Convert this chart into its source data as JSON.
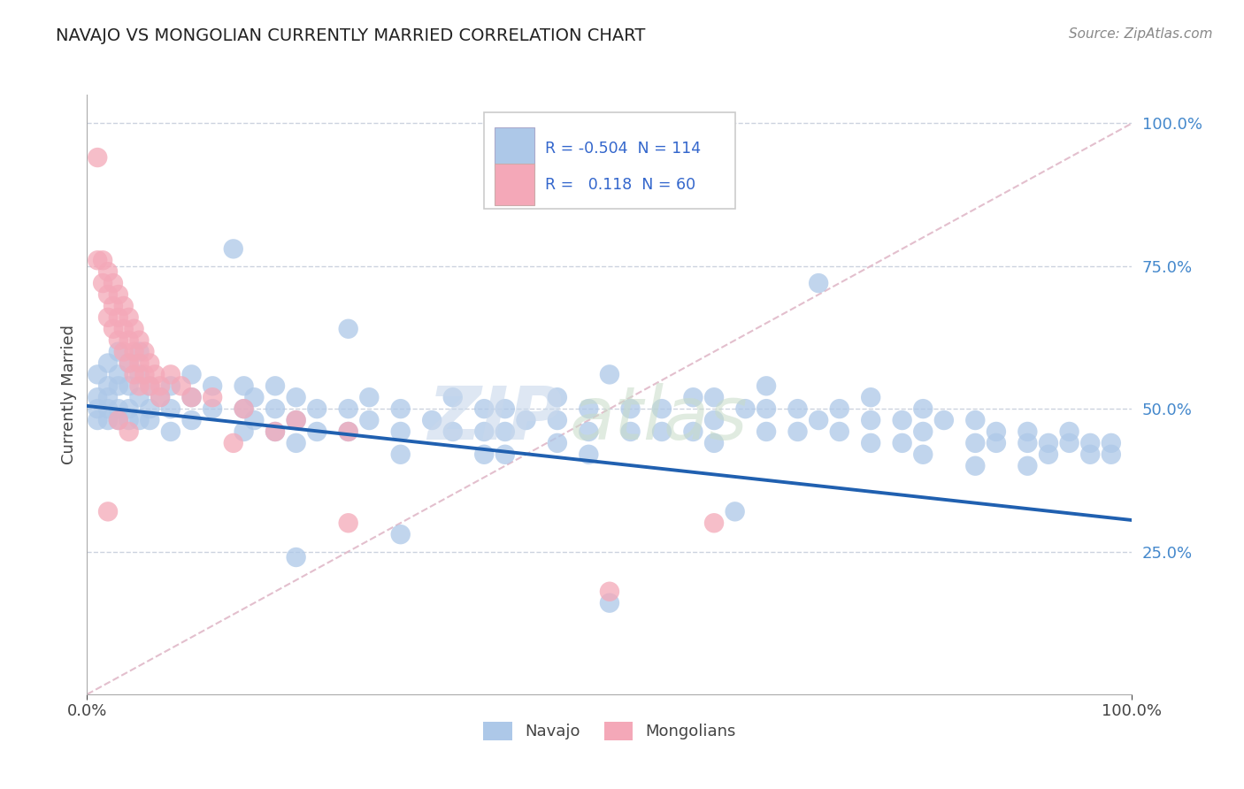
{
  "title": "NAVAJO VS MONGOLIAN CURRENTLY MARRIED CORRELATION CHART",
  "source": "Source: ZipAtlas.com",
  "ylabel": "Currently Married",
  "xlim": [
    0.0,
    1.0
  ],
  "ylim": [
    0.0,
    1.05
  ],
  "xtick_positions": [
    0.0,
    1.0
  ],
  "xtick_labels": [
    "0.0%",
    "100.0%"
  ],
  "ytick_positions": [
    0.25,
    0.5,
    0.75,
    1.0
  ],
  "ytick_labels_right": [
    "25.0%",
    "50.0%",
    "75.0%",
    "100.0%"
  ],
  "legend_labels": [
    "Navajo",
    "Mongolians"
  ],
  "navajo_R": "-0.504",
  "navajo_N": "114",
  "mongolian_R": "0.118",
  "mongolian_N": "60",
  "navajo_color": "#adc8e8",
  "mongolian_color": "#f4a8b8",
  "navajo_line_color": "#2060b0",
  "diagonal_color": "#e0b8c8",
  "watermark_zip_color": "#c8d8ec",
  "watermark_atlas_color": "#c8dcc8",
  "navajo_line_start_y": 0.505,
  "navajo_line_end_y": 0.305,
  "navajo_points": [
    [
      0.01,
      0.56
    ],
    [
      0.01,
      0.52
    ],
    [
      0.01,
      0.5
    ],
    [
      0.01,
      0.48
    ],
    [
      0.02,
      0.58
    ],
    [
      0.02,
      0.54
    ],
    [
      0.02,
      0.52
    ],
    [
      0.02,
      0.5
    ],
    [
      0.02,
      0.48
    ],
    [
      0.03,
      0.6
    ],
    [
      0.03,
      0.56
    ],
    [
      0.03,
      0.54
    ],
    [
      0.03,
      0.5
    ],
    [
      0.03,
      0.48
    ],
    [
      0.04,
      0.58
    ],
    [
      0.04,
      0.54
    ],
    [
      0.04,
      0.5
    ],
    [
      0.04,
      0.48
    ],
    [
      0.05,
      0.6
    ],
    [
      0.05,
      0.56
    ],
    [
      0.05,
      0.52
    ],
    [
      0.05,
      0.48
    ],
    [
      0.06,
      0.54
    ],
    [
      0.06,
      0.5
    ],
    [
      0.06,
      0.48
    ],
    [
      0.07,
      0.52
    ],
    [
      0.08,
      0.54
    ],
    [
      0.08,
      0.5
    ],
    [
      0.08,
      0.46
    ],
    [
      0.1,
      0.56
    ],
    [
      0.1,
      0.52
    ],
    [
      0.1,
      0.48
    ],
    [
      0.12,
      0.54
    ],
    [
      0.12,
      0.5
    ],
    [
      0.14,
      0.78
    ],
    [
      0.15,
      0.54
    ],
    [
      0.15,
      0.5
    ],
    [
      0.15,
      0.46
    ],
    [
      0.16,
      0.52
    ],
    [
      0.16,
      0.48
    ],
    [
      0.18,
      0.54
    ],
    [
      0.18,
      0.5
    ],
    [
      0.18,
      0.46
    ],
    [
      0.2,
      0.52
    ],
    [
      0.2,
      0.48
    ],
    [
      0.2,
      0.44
    ],
    [
      0.22,
      0.5
    ],
    [
      0.22,
      0.46
    ],
    [
      0.25,
      0.64
    ],
    [
      0.25,
      0.5
    ],
    [
      0.25,
      0.46
    ],
    [
      0.27,
      0.52
    ],
    [
      0.27,
      0.48
    ],
    [
      0.3,
      0.5
    ],
    [
      0.3,
      0.46
    ],
    [
      0.3,
      0.42
    ],
    [
      0.33,
      0.48
    ],
    [
      0.35,
      0.52
    ],
    [
      0.35,
      0.46
    ],
    [
      0.38,
      0.5
    ],
    [
      0.38,
      0.46
    ],
    [
      0.38,
      0.42
    ],
    [
      0.4,
      0.5
    ],
    [
      0.4,
      0.46
    ],
    [
      0.4,
      0.42
    ],
    [
      0.42,
      0.48
    ],
    [
      0.45,
      0.52
    ],
    [
      0.45,
      0.48
    ],
    [
      0.45,
      0.44
    ],
    [
      0.48,
      0.5
    ],
    [
      0.48,
      0.46
    ],
    [
      0.48,
      0.42
    ],
    [
      0.5,
      0.56
    ],
    [
      0.52,
      0.5
    ],
    [
      0.52,
      0.46
    ],
    [
      0.55,
      0.5
    ],
    [
      0.55,
      0.46
    ],
    [
      0.58,
      0.52
    ],
    [
      0.58,
      0.46
    ],
    [
      0.6,
      0.52
    ],
    [
      0.6,
      0.48
    ],
    [
      0.6,
      0.44
    ],
    [
      0.63,
      0.5
    ],
    [
      0.65,
      0.54
    ],
    [
      0.65,
      0.5
    ],
    [
      0.65,
      0.46
    ],
    [
      0.68,
      0.5
    ],
    [
      0.68,
      0.46
    ],
    [
      0.7,
      0.72
    ],
    [
      0.7,
      0.48
    ],
    [
      0.72,
      0.5
    ],
    [
      0.72,
      0.46
    ],
    [
      0.75,
      0.52
    ],
    [
      0.75,
      0.48
    ],
    [
      0.75,
      0.44
    ],
    [
      0.78,
      0.48
    ],
    [
      0.78,
      0.44
    ],
    [
      0.8,
      0.5
    ],
    [
      0.8,
      0.46
    ],
    [
      0.8,
      0.42
    ],
    [
      0.82,
      0.48
    ],
    [
      0.85,
      0.48
    ],
    [
      0.85,
      0.44
    ],
    [
      0.85,
      0.4
    ],
    [
      0.87,
      0.46
    ],
    [
      0.87,
      0.44
    ],
    [
      0.9,
      0.46
    ],
    [
      0.9,
      0.44
    ],
    [
      0.9,
      0.4
    ],
    [
      0.92,
      0.44
    ],
    [
      0.92,
      0.42
    ],
    [
      0.94,
      0.46
    ],
    [
      0.94,
      0.44
    ],
    [
      0.96,
      0.44
    ],
    [
      0.96,
      0.42
    ],
    [
      0.98,
      0.44
    ],
    [
      0.98,
      0.42
    ],
    [
      0.62,
      0.32
    ],
    [
      0.3,
      0.28
    ],
    [
      0.2,
      0.24
    ],
    [
      0.5,
      0.16
    ]
  ],
  "mongolian_points": [
    [
      0.01,
      0.94
    ],
    [
      0.01,
      0.76
    ],
    [
      0.015,
      0.76
    ],
    [
      0.015,
      0.72
    ],
    [
      0.02,
      0.74
    ],
    [
      0.02,
      0.7
    ],
    [
      0.02,
      0.66
    ],
    [
      0.025,
      0.72
    ],
    [
      0.025,
      0.68
    ],
    [
      0.025,
      0.64
    ],
    [
      0.03,
      0.7
    ],
    [
      0.03,
      0.66
    ],
    [
      0.03,
      0.62
    ],
    [
      0.035,
      0.68
    ],
    [
      0.035,
      0.64
    ],
    [
      0.035,
      0.6
    ],
    [
      0.04,
      0.66
    ],
    [
      0.04,
      0.62
    ],
    [
      0.04,
      0.58
    ],
    [
      0.045,
      0.64
    ],
    [
      0.045,
      0.6
    ],
    [
      0.045,
      0.56
    ],
    [
      0.05,
      0.62
    ],
    [
      0.05,
      0.58
    ],
    [
      0.05,
      0.54
    ],
    [
      0.055,
      0.6
    ],
    [
      0.055,
      0.56
    ],
    [
      0.06,
      0.58
    ],
    [
      0.06,
      0.54
    ],
    [
      0.065,
      0.56
    ],
    [
      0.07,
      0.54
    ],
    [
      0.07,
      0.52
    ],
    [
      0.08,
      0.56
    ],
    [
      0.09,
      0.54
    ],
    [
      0.1,
      0.52
    ],
    [
      0.12,
      0.52
    ],
    [
      0.14,
      0.44
    ],
    [
      0.15,
      0.5
    ],
    [
      0.18,
      0.46
    ],
    [
      0.2,
      0.48
    ],
    [
      0.25,
      0.46
    ],
    [
      0.02,
      0.32
    ],
    [
      0.03,
      0.48
    ],
    [
      0.04,
      0.46
    ],
    [
      0.25,
      0.3
    ],
    [
      0.6,
      0.3
    ],
    [
      0.5,
      0.18
    ]
  ]
}
